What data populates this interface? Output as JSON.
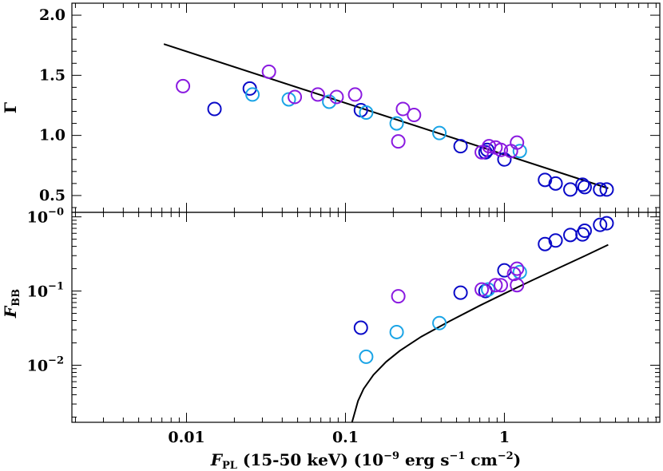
{
  "chart_data": [
    {
      "type": "scatter",
      "panel": "top",
      "ylabel": "Γ",
      "xscale": "log",
      "xlim": [
        0.0019,
        9.5
      ],
      "ylim": [
        0.36,
        2.1
      ],
      "yticks": [
        {
          "value": 0.5,
          "label": "0.5"
        },
        {
          "value": 1.0,
          "label": "1.0"
        },
        {
          "value": 1.5,
          "label": "1.5"
        },
        {
          "value": 2.0,
          "label": "2.0"
        }
      ],
      "colors": {
        "navy": "#0a0ac8",
        "sky": "#1aa4e6",
        "violet": "#8a1ae0",
        "model": "#000000"
      },
      "series": [
        {
          "color": "navy",
          "points": [
            [
              0.015,
              1.22
            ],
            [
              0.025,
              1.39
            ],
            [
              0.125,
              1.21
            ],
            [
              0.53,
              0.91
            ],
            [
              0.76,
              0.86
            ],
            [
              0.78,
              0.88
            ],
            [
              1.0,
              0.8
            ],
            [
              1.8,
              0.63
            ],
            [
              2.1,
              0.6
            ],
            [
              2.6,
              0.55
            ],
            [
              3.1,
              0.59
            ],
            [
              3.2,
              0.57
            ],
            [
              4.0,
              0.55
            ],
            [
              4.4,
              0.55
            ]
          ]
        },
        {
          "color": "sky",
          "points": [
            [
              0.026,
              1.34
            ],
            [
              0.044,
              1.3
            ],
            [
              0.079,
              1.28
            ],
            [
              0.135,
              1.19
            ],
            [
              0.21,
              1.1
            ],
            [
              0.39,
              1.02
            ],
            [
              1.25,
              0.87
            ]
          ]
        },
        {
          "color": "violet",
          "points": [
            [
              0.0095,
              1.41
            ],
            [
              0.033,
              1.53
            ],
            [
              0.048,
              1.32
            ],
            [
              0.067,
              1.34
            ],
            [
              0.088,
              1.32
            ],
            [
              0.115,
              1.34
            ],
            [
              0.215,
              0.95
            ],
            [
              0.23,
              1.22
            ],
            [
              0.27,
              1.17
            ],
            [
              0.72,
              0.86
            ],
            [
              0.8,
              0.91
            ],
            [
              0.88,
              0.9
            ],
            [
              0.95,
              0.88
            ],
            [
              1.1,
              0.87
            ],
            [
              1.2,
              0.94
            ]
          ]
        }
      ],
      "model_line": {
        "x": [
          0.0072,
          4.5
        ],
        "y": [
          1.76,
          0.56
        ]
      }
    },
    {
      "type": "scatter",
      "panel": "bottom",
      "xlabel": "F_PL (15-50 keV) (10^-9 erg s^-1 cm^-2)",
      "ylabel": "F_BB",
      "xscale": "log",
      "yscale": "log",
      "xlim": [
        0.0019,
        9.5
      ],
      "ylim": [
        0.0017,
        1.15
      ],
      "xticks": [
        {
          "value": 0.01,
          "label": "0.01"
        },
        {
          "value": 0.1,
          "label": "0.1"
        },
        {
          "value": 1,
          "label": "1"
        }
      ],
      "yticks": [
        {
          "value": 0.01,
          "base": "10",
          "exp": "−2"
        },
        {
          "value": 0.1,
          "base": "10",
          "exp": "−1"
        },
        {
          "value": 1,
          "base": "10",
          "exp": "−0"
        }
      ],
      "series": [
        {
          "color": "navy",
          "points": [
            [
              0.125,
              0.032
            ],
            [
              0.53,
              0.095
            ],
            [
              0.76,
              0.1
            ],
            [
              1.0,
              0.19
            ],
            [
              1.8,
              0.43
            ],
            [
              2.1,
              0.48
            ],
            [
              2.6,
              0.57
            ],
            [
              3.1,
              0.58
            ],
            [
              3.2,
              0.65
            ],
            [
              4.0,
              0.78
            ],
            [
              4.4,
              0.82
            ]
          ]
        },
        {
          "color": "sky",
          "points": [
            [
              0.135,
              0.013
            ],
            [
              0.21,
              0.028
            ],
            [
              0.39,
              0.037
            ],
            [
              0.79,
              0.105
            ],
            [
              1.25,
              0.18
            ]
          ]
        },
        {
          "color": "violet",
          "points": [
            [
              0.215,
              0.085
            ],
            [
              0.72,
              0.105
            ],
            [
              0.88,
              0.12
            ],
            [
              0.95,
              0.12
            ],
            [
              1.15,
              0.17
            ],
            [
              1.2,
              0.2
            ],
            [
              1.2,
              0.12
            ]
          ]
        }
      ],
      "model_curve": {
        "x": [
          0.11,
          0.115,
          0.12,
          0.13,
          0.15,
          0.18,
          0.22,
          0.3,
          0.45,
          0.7,
          1.0,
          1.5,
          2.2,
          3.2,
          4.5
        ],
        "y": [
          0.0017,
          0.0024,
          0.0033,
          0.0048,
          0.0074,
          0.0111,
          0.0157,
          0.0243,
          0.0391,
          0.0636,
          0.0925,
          0.14,
          0.205,
          0.297,
          0.42
        ]
      }
    }
  ]
}
